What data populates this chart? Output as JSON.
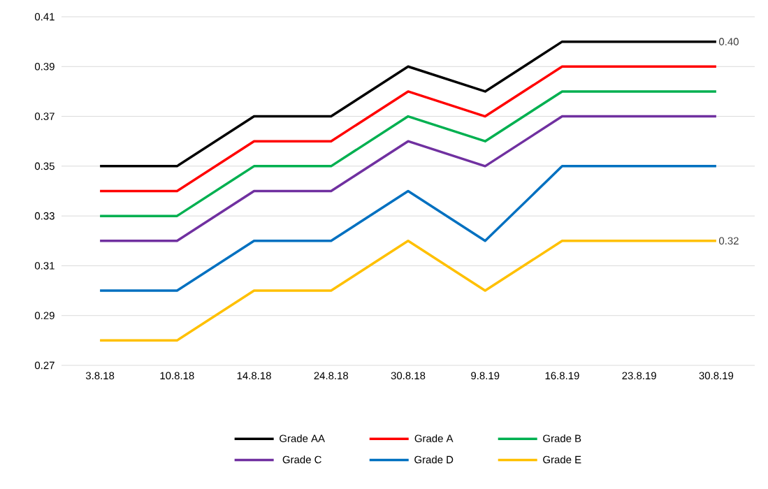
{
  "chart_data": {
    "type": "line",
    "categories": [
      "3.8.18",
      "10.8.18",
      "14.8.18",
      "24.8.18",
      "30.8.18",
      "9.8.19",
      "16.8.19",
      "23.8.19",
      "30.8.19"
    ],
    "series": [
      {
        "name": "Grade AA",
        "color": "#000000",
        "values": [
          0.35,
          0.35,
          0.37,
          0.37,
          0.39,
          0.38,
          0.4,
          0.4,
          0.4
        ],
        "value_labels": [
          null,
          null,
          null,
          null,
          null,
          null,
          null,
          null,
          "0.40"
        ]
      },
      {
        "name": "Grade A",
        "color": "#ff0000",
        "values": [
          0.34,
          0.34,
          0.36,
          0.36,
          0.38,
          0.37,
          0.39,
          0.39,
          0.39
        ]
      },
      {
        "name": "Grade B",
        "color": "#00b050",
        "values": [
          0.33,
          0.33,
          0.35,
          0.35,
          0.37,
          0.36,
          0.38,
          0.38,
          0.38
        ]
      },
      {
        "name": "Grade C",
        "color": "#7030a0",
        "values": [
          0.32,
          0.32,
          0.34,
          0.34,
          0.36,
          0.35,
          0.37,
          0.37,
          0.37
        ]
      },
      {
        "name": "Grade D",
        "color": "#0070c0",
        "values": [
          0.3,
          0.3,
          0.32,
          0.32,
          0.34,
          0.32,
          0.35,
          0.35,
          0.35
        ]
      },
      {
        "name": "Grade E",
        "color": "#ffc000",
        "values": [
          0.28,
          0.28,
          0.3,
          0.3,
          0.32,
          0.3,
          0.32,
          0.32,
          0.32
        ],
        "value_labels": [
          null,
          null,
          null,
          null,
          null,
          null,
          null,
          null,
          "0.32"
        ]
      }
    ],
    "ylim": [
      0.27,
      0.41
    ],
    "yticks": [
      0.27,
      0.29,
      0.31,
      0.33,
      0.35,
      0.37,
      0.39,
      0.41
    ],
    "grid": "y",
    "legend": "bottom",
    "marker": "none",
    "line_style": "solid"
  }
}
